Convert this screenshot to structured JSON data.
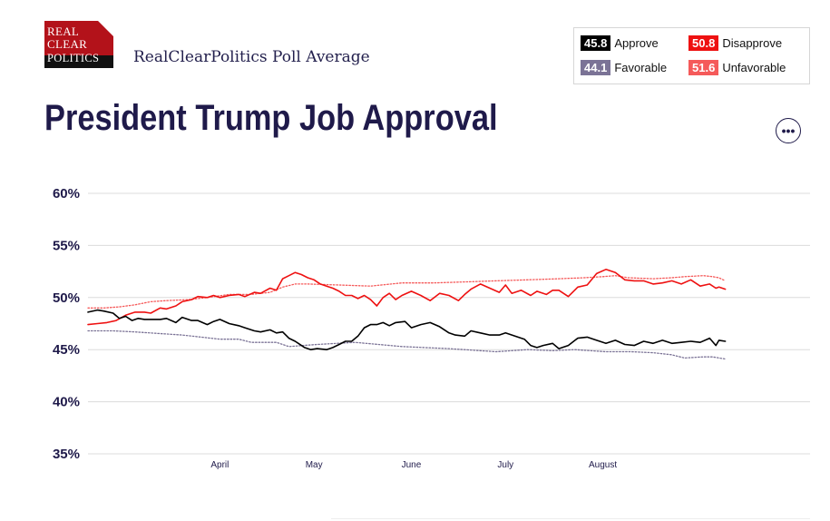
{
  "logo": {
    "line1": "REAL",
    "line2": "CLEAR",
    "line3": "POLITICS"
  },
  "subtitle": "RealClearPolitics Poll Average",
  "title": "President Trump Job Approval",
  "more_icon": "ellipsis-icon",
  "legend": [
    {
      "value": "45.8",
      "label": "Approve",
      "color": "#000000"
    },
    {
      "value": "50.8",
      "label": "Disapprove",
      "color": "#ee1111"
    },
    {
      "value": "44.1",
      "label": "Favorable",
      "color": "#7b7396"
    },
    {
      "value": "51.6",
      "label": "Unfavorable",
      "color": "#f55a5a"
    }
  ],
  "chart_data": {
    "type": "line",
    "title": "President Trump Job Approval",
    "ylim": [
      35,
      60
    ],
    "yticks": [
      60,
      55,
      50,
      45,
      40,
      35
    ],
    "ytick_labels": [
      "60%",
      "55%",
      "50%",
      "45%",
      "40%",
      "35%"
    ],
    "xlim_days": [
      0,
      230
    ],
    "xticks": [
      {
        "day": 42,
        "label": "April"
      },
      {
        "day": 72,
        "label": "May"
      },
      {
        "day": 103,
        "label": "June"
      },
      {
        "day": 133,
        "label": "July"
      },
      {
        "day": 164,
        "label": "August"
      }
    ],
    "grid": true,
    "series": [
      {
        "name": "Approve",
        "style": "solid",
        "color": "#000000",
        "x": [
          0,
          3,
          5,
          8,
          10,
          12,
          14,
          16,
          18,
          20,
          23,
          25,
          28,
          30,
          33,
          35,
          38,
          40,
          42,
          45,
          48,
          50,
          53,
          55,
          58,
          60,
          62,
          64,
          66,
          67,
          69,
          71,
          73,
          76,
          78,
          80,
          82,
          84,
          86,
          88,
          90,
          92,
          94,
          96,
          98,
          101,
          103,
          106,
          109,
          112,
          115,
          117,
          120,
          122,
          125,
          128,
          131,
          133,
          136,
          139,
          141,
          143,
          145,
          148,
          150,
          153,
          156,
          159,
          162,
          165,
          168,
          171,
          174,
          177,
          180,
          183,
          186,
          189,
          192,
          195,
          198,
          200,
          201,
          203
        ],
        "y": [
          48.6,
          48.8,
          48.7,
          48.5,
          48.0,
          48.2,
          47.8,
          48.0,
          47.9,
          47.9,
          47.9,
          48.0,
          47.6,
          48.1,
          47.8,
          47.8,
          47.4,
          47.7,
          47.9,
          47.5,
          47.3,
          47.1,
          46.8,
          46.7,
          46.9,
          46.6,
          46.7,
          46.1,
          45.8,
          45.6,
          45.2,
          45.0,
          45.1,
          45.0,
          45.2,
          45.5,
          45.8,
          45.8,
          46.3,
          47.1,
          47.4,
          47.4,
          47.6,
          47.3,
          47.6,
          47.7,
          47.1,
          47.4,
          47.6,
          47.2,
          46.6,
          46.4,
          46.3,
          46.8,
          46.6,
          46.4,
          46.4,
          46.6,
          46.3,
          46.0,
          45.4,
          45.2,
          45.4,
          45.6,
          45.1,
          45.4,
          46.1,
          46.2,
          45.9,
          45.6,
          45.9,
          45.5,
          45.4,
          45.8,
          45.6,
          45.9,
          45.6,
          45.7,
          45.8,
          45.7,
          46.1,
          45.4,
          45.9,
          45.8
        ]
      },
      {
        "name": "Disapprove",
        "style": "solid",
        "color": "#ee1111",
        "x": [
          0,
          3,
          6,
          9,
          12,
          15,
          18,
          20,
          23,
          25,
          28,
          30,
          33,
          35,
          38,
          40,
          42,
          45,
          48,
          50,
          53,
          55,
          58,
          60,
          62,
          64,
          66,
          68,
          70,
          72,
          74,
          76,
          78,
          80,
          82,
          84,
          86,
          88,
          90,
          92,
          94,
          96,
          98,
          100,
          103,
          106,
          109,
          112,
          115,
          118,
          120,
          122,
          125,
          128,
          131,
          133,
          135,
          138,
          141,
          143,
          146,
          148,
          150,
          153,
          156,
          159,
          162,
          165,
          168,
          171,
          174,
          177,
          180,
          183,
          186,
          189,
          192,
          195,
          198,
          200,
          201,
          203
        ],
        "y": [
          47.4,
          47.5,
          47.6,
          47.8,
          48.3,
          48.6,
          48.6,
          48.5,
          49.0,
          48.9,
          49.2,
          49.6,
          49.8,
          50.1,
          50.0,
          50.2,
          50.0,
          50.2,
          50.3,
          50.1,
          50.5,
          50.4,
          50.9,
          50.7,
          51.8,
          52.1,
          52.4,
          52.2,
          51.9,
          51.7,
          51.3,
          51.1,
          50.9,
          50.6,
          50.2,
          50.2,
          49.9,
          50.2,
          49.8,
          49.2,
          50.0,
          50.4,
          49.8,
          50.2,
          50.6,
          50.2,
          49.7,
          50.4,
          50.2,
          49.7,
          50.3,
          50.8,
          51.3,
          50.9,
          50.5,
          51.2,
          50.4,
          50.7,
          50.2,
          50.6,
          50.3,
          50.7,
          50.7,
          50.1,
          51.0,
          51.2,
          52.3,
          52.7,
          52.4,
          51.7,
          51.6,
          51.6,
          51.3,
          51.4,
          51.6,
          51.3,
          51.7,
          51.1,
          51.3,
          50.9,
          51.0,
          50.8
        ]
      },
      {
        "name": "Favorable",
        "style": "dotted",
        "color": "#7b7396",
        "x": [
          0,
          8,
          15,
          30,
          42,
          48,
          52,
          60,
          64,
          73,
          85,
          100,
          115,
          130,
          140,
          148,
          155,
          165,
          173,
          180,
          186,
          190,
          196,
          199,
          201,
          203
        ],
        "y": [
          46.8,
          46.8,
          46.7,
          46.4,
          46.0,
          46.0,
          45.7,
          45.7,
          45.3,
          45.5,
          45.7,
          45.3,
          45.1,
          44.8,
          45.0,
          44.9,
          45.0,
          44.8,
          44.8,
          44.7,
          44.5,
          44.2,
          44.3,
          44.3,
          44.2,
          44.1
        ]
      },
      {
        "name": "Unfavorable",
        "style": "dotted",
        "color": "#f55a5a",
        "x": [
          0,
          5,
          10,
          15,
          20,
          25,
          32,
          38,
          45,
          52,
          58,
          62,
          66,
          70,
          80,
          90,
          100,
          110,
          120,
          130,
          140,
          150,
          158,
          164,
          168,
          172,
          180,
          186,
          190,
          196,
          199,
          201,
          203
        ],
        "y": [
          49.0,
          49.0,
          49.1,
          49.3,
          49.6,
          49.7,
          49.8,
          50.0,
          50.3,
          50.3,
          50.5,
          51.0,
          51.3,
          51.3,
          51.2,
          51.1,
          51.4,
          51.4,
          51.5,
          51.6,
          51.7,
          51.8,
          51.9,
          52.0,
          52.1,
          51.9,
          51.8,
          51.9,
          52.0,
          52.1,
          52.0,
          51.9,
          51.6
        ]
      }
    ]
  }
}
